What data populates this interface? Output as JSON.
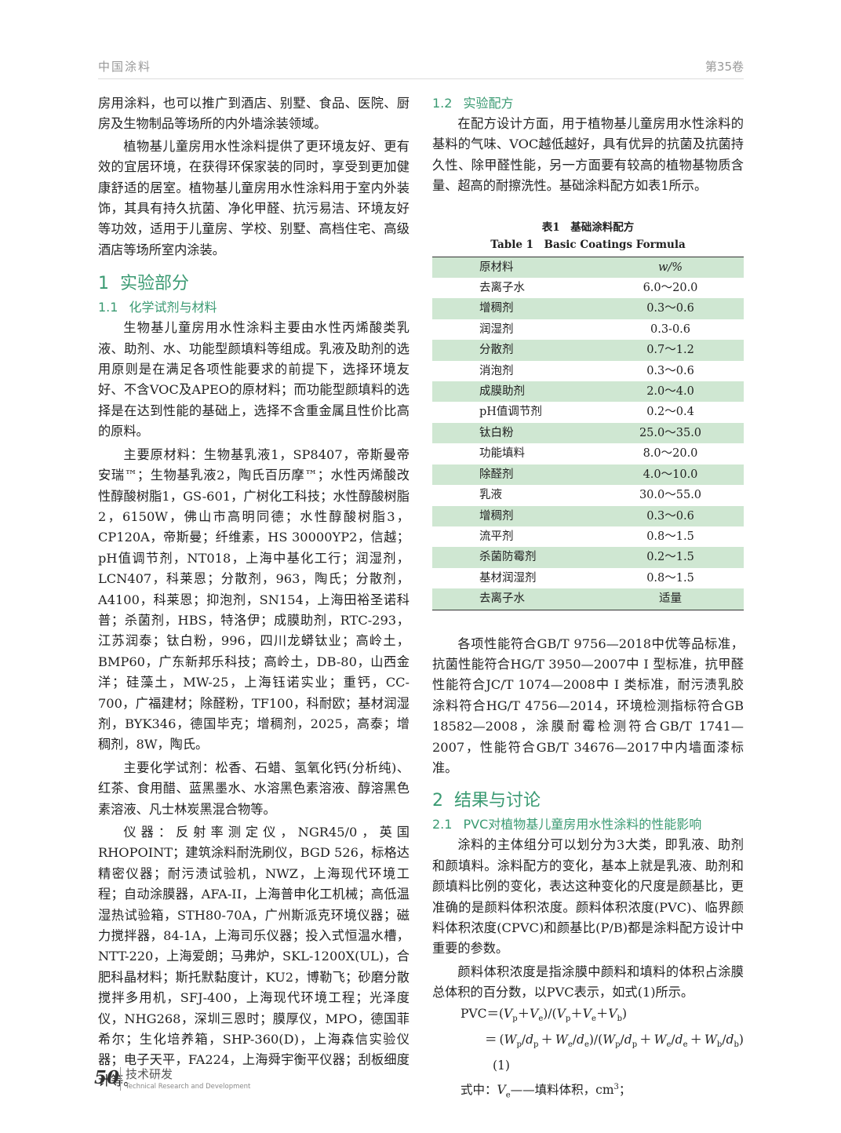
{
  "header": {
    "journal": "中国涂料",
    "volume": "第35卷"
  },
  "left_column": {
    "paragraphs_top": [
      "房用涂料，也可以推广到酒店、别墅、食品、医院、厨房及生物制品等场所的内外墙涂装领域。",
      "植物基儿童房用水性涂料提供了更环境友好、更有效的宜居环境，在获得环保家装的同时，享受到更加健康舒适的居室。植物基儿童房用水性涂料用于室内外装饰，其具有持久抗菌、净化甲醛、抗污易洁、环境友好等功效，适用于儿童房、学校、别墅、高档住宅、高级酒店等场所室内涂装。"
    ],
    "section": {
      "number": "1",
      "title": "实验部分"
    },
    "subsection": {
      "number": "1.1",
      "title": "化学试剂与材料"
    },
    "paragraphs": [
      "生物基儿童房用水性涂料主要由水性丙烯酸类乳液、助剂、水、功能型颜填料等组成。乳液及助剂的选用原则是在满足各项性能要求的前提下，选择环境友好、不含VOC及APEO的原材料；而功能型颜填料的选择是在达到性能的基础上，选择不含重金属且性价比高的原料。",
      "主要原材料：生物基乳液1，SP8407，帝斯曼帝安瑞™；生物基乳液2，陶氏百历摩™；水性丙烯酸改性醇酸树脂1，GS-601，广树化工科技；水性醇酸树脂2，6150W，佛山市高明同德；水性醇酸树脂3，CP120A，帝斯曼；纤维素，HS 30000YP2，信越；pH值调节剂，NT018，上海中基化工行；润湿剂，LCN407，科莱恩；分散剂，963，陶氏；分散剂，A4100，科莱恩；抑泡剂，SN154，上海田裕圣诺科普；杀菌剂，HBS，特洛伊；成膜助剂，RTC-293，江苏润泰；钛白粉，996，四川龙蟒钛业；高岭土，BMP60，广东新邦乐科技；高岭土，DB-80，山西金洋；硅藻土，MW-25，上海钰诺实业；重钙，CC-700，广福建材；除醛粉，TF100，科耐欧；基材润湿剂，BYK346，德国毕克；增稠剂，2025，高泰；增稠剂，8W，陶氏。",
      "主要化学试剂：松香、石蜡、氢氧化钙(分析纯)、红茶、食用醋、蓝黑墨水、水溶黑色素溶液、醇溶黑色素溶液、凡士林炭黑混合物等。",
      "仪器：反射率测定仪，NGR45/0，英国RHOPOINT；建筑涂料耐洗刷仪，BGD 526，标格达精密仪器；耐污渍试验机，NWZ，上海现代环境工程；自动涂膜器，AFA-II，上海普申化工机械；高低温湿热试验箱，STH80-70A，广州斯派克环境仪器；磁力搅拌器，84-1A，上海司乐仪器；投入式恒温水槽，NTT-220，上海爱朗；马弗炉，SKL-1200X(UL)，合肥科晶材料；斯托默黏度计，KU2，博勒飞；砂磨分散搅拌多用机，SFJ-400，上海现代环境工程；光泽度仪，NHG268，深圳三恩时；膜厚仪，MPO，德国菲希尔；生化培养箱，SHP-360(D)，上海森信实验仪器；电子天平，FA224，上海舜宇衡平仪器；刮板细度计等。"
    ]
  },
  "right_column": {
    "subsection": {
      "number": "1.2",
      "title": "实验配方"
    },
    "paragraph": "在配方设计方面，用于植物基儿童房用水性涂料的基料的气味、VOC越低越好，具有优异的抗菌及抗菌持久性、除甲醛性能，另一方面要有较高的植物基物质含量、超高的耐擦洗性。基础涂料配方如表1所示。",
    "table": {
      "caption_cn": "表1　基础涂料配方",
      "caption_en": "Table 1　Basic Coatings Formula",
      "header": [
        "原材料",
        "w/%"
      ],
      "rows": [
        [
          "去离子水",
          "6.0～20.0"
        ],
        [
          "增稠剂",
          "0.3～0.6"
        ],
        [
          "润湿剂",
          "0.3-0.6"
        ],
        [
          "分散剂",
          "0.7～1.2"
        ],
        [
          "消泡剂",
          "0.3～0.6"
        ],
        [
          "成膜助剂",
          "2.0～4.0"
        ],
        [
          "pH值调节剂",
          "0.2～0.4"
        ],
        [
          "钛白粉",
          "25.0～35.0"
        ],
        [
          "功能填料",
          "8.0～20.0"
        ],
        [
          "除醛剂",
          "4.0～10.0"
        ],
        [
          "乳液",
          "30.0～55.0"
        ],
        [
          "增稠剂",
          "0.3～0.6"
        ],
        [
          "流平剂",
          "0.8～1.5"
        ],
        [
          "杀菌防霉剂",
          "0.2～1.5"
        ],
        [
          "基材润湿剂",
          "0.8～1.5"
        ],
        [
          "去离子水",
          "适量"
        ]
      ]
    },
    "paragraph_after_table": "各项性能符合GB/T 9756—2018中优等品标准，抗菌性能符合HG/T 3950—2007中 I 型标准，抗甲醛性能符合JC/T 1074—2008中 I 类标准，耐污渍乳胶涂料符合HG/T 4756—2014，环境检测指标符合GB 18582—2008，涂膜耐霉检测符合GB/T 1741—2007，性能符合GB/T 34676—2017中内墙面漆标准。",
    "section": {
      "number": "2",
      "title": "结果与讨论"
    },
    "subsection2": {
      "number": "2.1",
      "title": "PVC对植物基儿童房用水性涂料的性能影响"
    },
    "paragraphs": [
      "涂料的主体组分可以划分为3大类，即乳液、助剂和颜填料。涂料配方的变化，基本上就是乳液、助剂和颜填料比例的变化，表达这种变化的尺度是颜基比，更准确的是颜料体积浓度。颜料体积浓度(PVC)、临界颜料体积浓度(CPVC)和颜基比(P/B)都是涂料配方设计中重要的参数。",
      "颜料体积浓度是指涂膜中颜料和填料的体积占涂膜总体积的百分数，以PVC表示，如式(1)所示。"
    ],
    "formula": {
      "lines": [
        [
          {
            "text": "PVC＝("
          },
          {
            "text": "V",
            "sub": "p"
          },
          {
            "text": "＋"
          },
          {
            "text": "V",
            "sub": "e"
          },
          {
            "text": ")/("
          },
          {
            "text": "V",
            "sub": "p"
          },
          {
            "text": "＋"
          },
          {
            "text": "V",
            "sub": "e"
          },
          {
            "text": "＋"
          },
          {
            "text": "V",
            "sub": "b"
          },
          {
            "text": ")"
          }
        ],
        [
          {
            "text": "＝("
          },
          {
            "text": "W",
            "sub": "p"
          },
          {
            "text": "/"
          },
          {
            "text": "d",
            "sub": "p"
          },
          {
            "text": "＋"
          },
          {
            "text": "W",
            "sub": "e"
          },
          {
            "text": "/"
          },
          {
            "text": "d",
            "sub": "e"
          },
          {
            "text": ")/("
          },
          {
            "text": "W",
            "sub": "p"
          },
          {
            "text": "/"
          },
          {
            "text": "d",
            "sub": "p"
          },
          {
            "text": "＋"
          },
          {
            "text": "W",
            "sub": "e"
          },
          {
            "text": "/"
          },
          {
            "text": "d",
            "sub": "e"
          },
          {
            "text": "＋"
          },
          {
            "text": "W",
            "sub": "b"
          },
          {
            "text": "/"
          },
          {
            "text": "d",
            "sub": "b"
          },
          {
            "text": ")"
          }
        ],
        [
          {
            "text": "式中："
          },
          {
            "text": "V",
            "sub": "e"
          },
          {
            "text": "——填料体积，cm",
            "sup": "3"
          },
          {
            "text": "；"
          }
        ]
      ],
      "number": "(1)"
    }
  },
  "footer": {
    "page": "50",
    "column_cn": "技术研发",
    "column_en": "Technical Research and Development"
  }
}
